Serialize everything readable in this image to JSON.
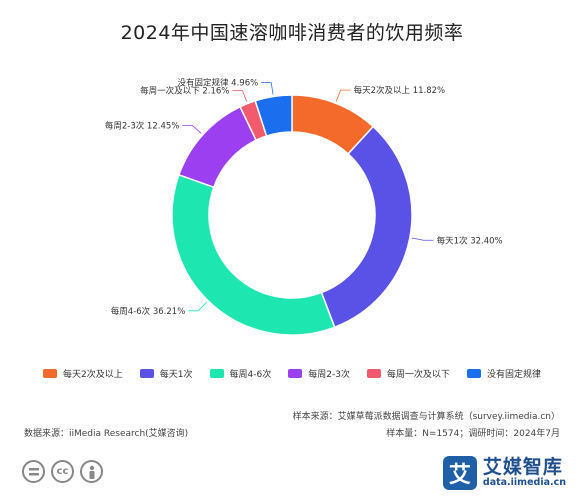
{
  "chart_data": {
    "type": "pie",
    "title": "2024年中国速溶咖啡消费者的饮用频率",
    "categories": [
      "每天2次及以上",
      "每天1次",
      "每周4-6次",
      "每周2-3次",
      "每周一次及以下",
      "没有固定规律"
    ],
    "values": [
      11.82,
      32.4,
      36.21,
      12.45,
      2.16,
      4.96
    ],
    "unit": "%",
    "labels": [
      "每天2次及以上 11.82%",
      "每天1次 32.40%",
      "每周4-6次 36.21%",
      "每周2-3次 12.45%",
      "每周一次及以下 2.16%",
      "没有固定规律 4.96%"
    ],
    "colors": [
      "#f46a2b",
      "#5a52e6",
      "#1ee6b0",
      "#9c3ff0",
      "#f25a6e",
      "#1b6fef"
    ],
    "donut": true,
    "legend_position": "bottom"
  },
  "footer": {
    "sample_source": "样本来源：艾媒草莓派数据调查与计算系统（survey.iimedia.cn）",
    "sample_size": "样本量：N=1574；调研时间：2024年7月",
    "data_source": "数据来源：iiMedia Research(艾媒咨询)"
  },
  "brand": {
    "logo_char": "艾",
    "name": "艾媒智库",
    "url": "data.iimedia.cn"
  },
  "license": {
    "icons": [
      "equal-icon",
      "cc-icon",
      "person-icon"
    ],
    "cc_text": "cc"
  }
}
